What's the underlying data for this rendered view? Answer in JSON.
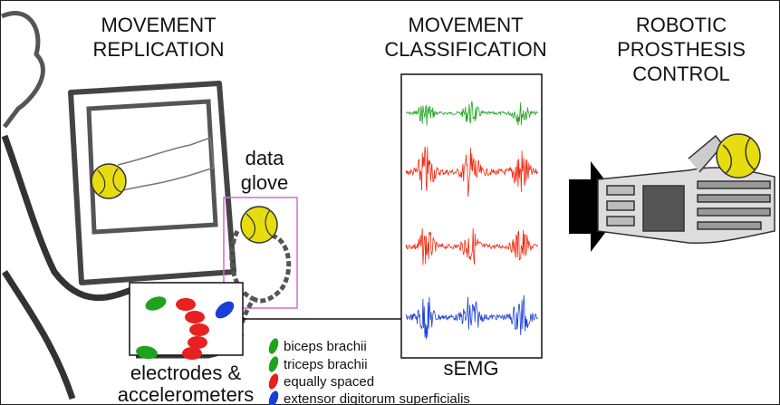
{
  "sections": [
    {
      "title": [
        "MOVEMENT",
        "REPLICATION"
      ]
    },
    {
      "title": [
        "MOVEMENT",
        "CLASSIFICATION"
      ]
    },
    {
      "title": [
        "ROBOTIC",
        "PROSTHESIS",
        "CONTROL"
      ]
    }
  ],
  "glove_label": [
    "data",
    "glove"
  ],
  "electrodes_label": [
    "electrodes &",
    "accelerometers"
  ],
  "signal_label": "sEMG",
  "legend": [
    "biceps brachii",
    "triceps brachii",
    "equally spaced",
    "extensor digitorum superficialis"
  ]
}
